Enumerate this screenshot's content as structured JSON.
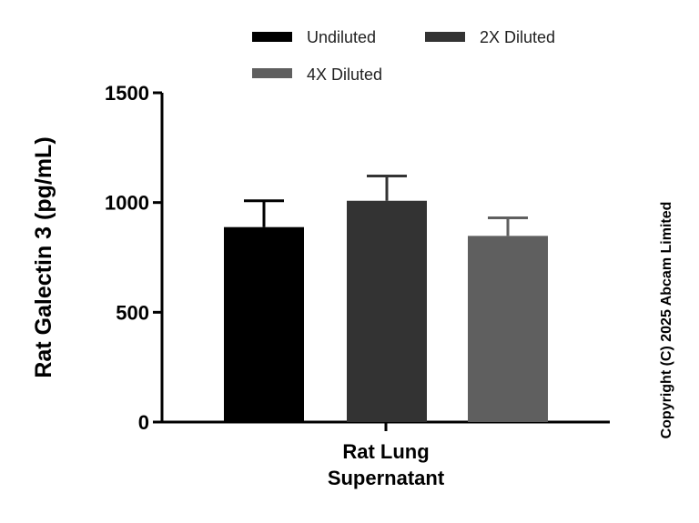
{
  "chart_data": {
    "type": "bar",
    "title": "",
    "categories": [
      "Rat Lung Supernatant"
    ],
    "category_lines": [
      [
        "Rat Lung",
        "Supernatant"
      ]
    ],
    "series": [
      {
        "name": "Undiluted",
        "color": "#000000",
        "values": [
          888
        ],
        "error": [
          120
        ]
      },
      {
        "name": "2X Diluted",
        "color": "#333333",
        "values": [
          1008
        ],
        "error": [
          113
        ]
      },
      {
        "name": "4X Diluted",
        "color": "#5f5f5f",
        "values": [
          848
        ],
        "error": [
          82
        ]
      }
    ],
    "xlabel": "",
    "ylabel": "Rat Galectin 3 (pg/mL)",
    "ylim": [
      0,
      1500
    ],
    "yticks": [
      0,
      500,
      1000,
      1500
    ],
    "ytick_labels": [
      "0",
      "500",
      "1000",
      "1500"
    ],
    "grid": false,
    "legend_position": "top"
  },
  "copyright": "Copyright (C) 2025 Abcam Limited"
}
